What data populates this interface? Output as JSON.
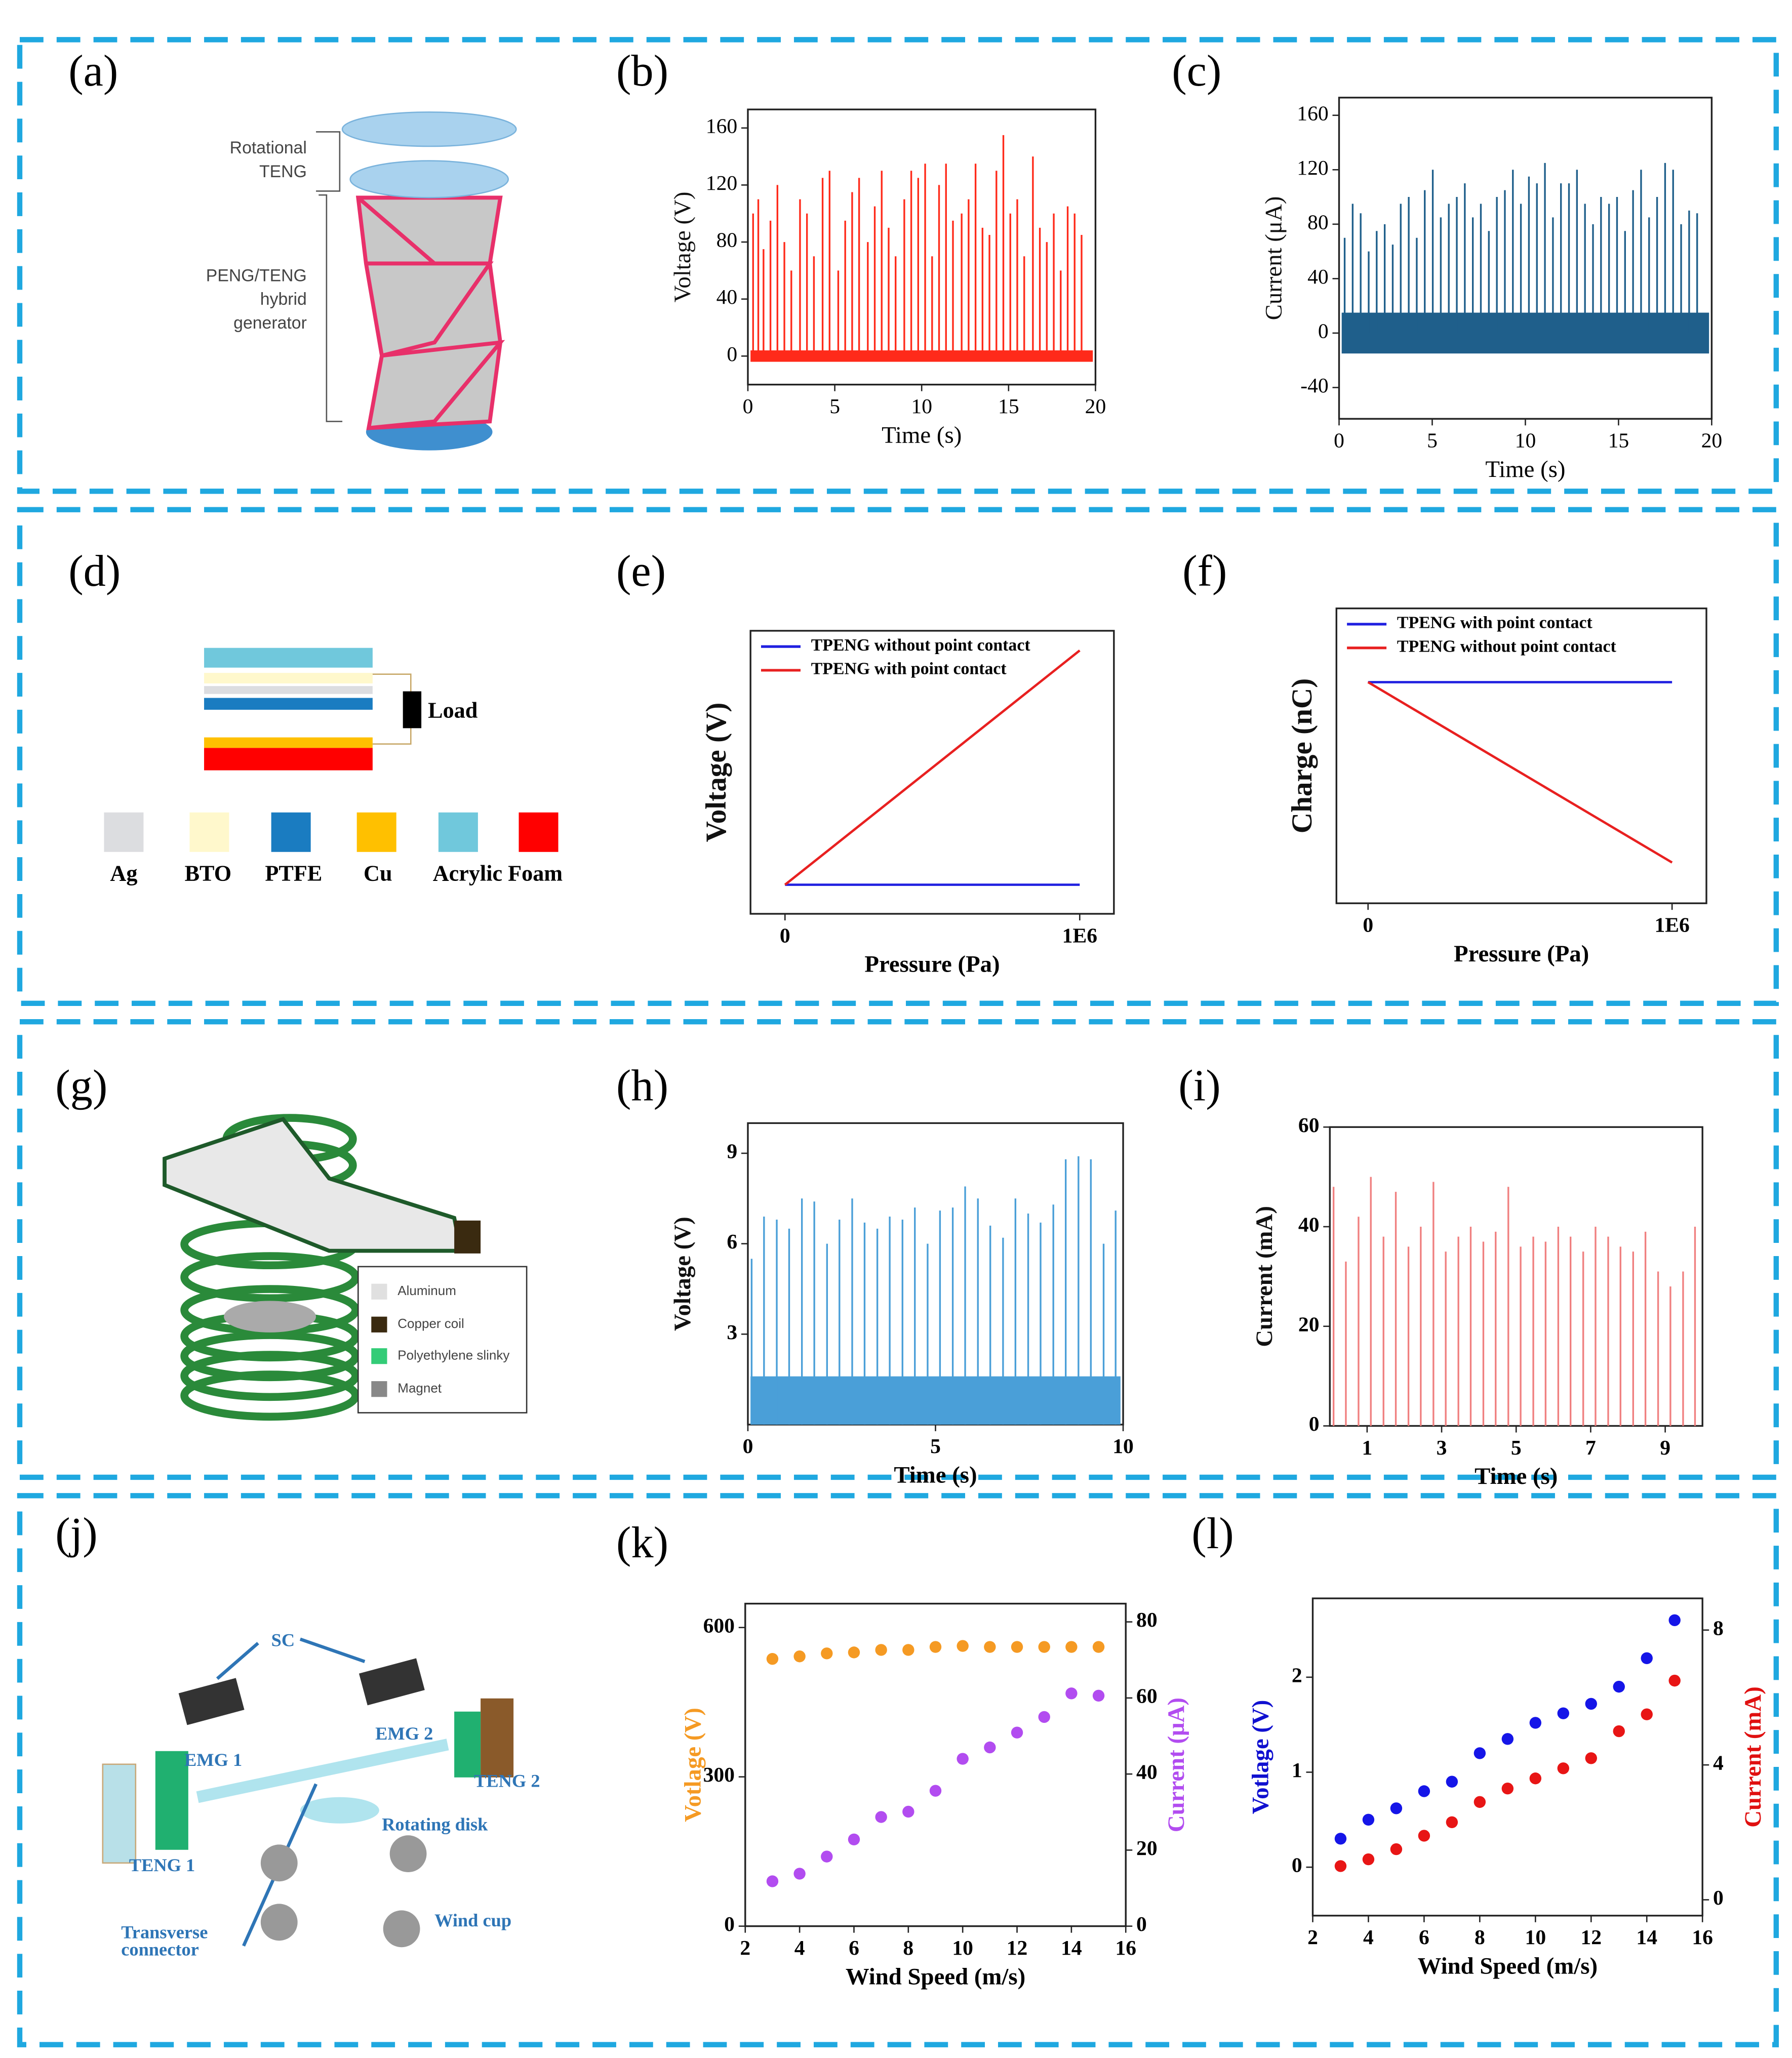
{
  "chart_data": [
    {
      "type": "spikes",
      "panel": "(b)",
      "xlabel": "Time (s)",
      "ylabel": "Voltage (V)",
      "color": "#ff2a1a",
      "xlim": [
        0,
        20
      ],
      "xticks": [
        0,
        5,
        10,
        15,
        20
      ],
      "ylim": [
        -20,
        173
      ],
      "yticks": [
        0,
        40,
        80,
        120,
        160
      ],
      "baseline_band": [
        -4,
        4
      ],
      "x": [
        0.3,
        0.6,
        0.9,
        1.3,
        1.7,
        2.1,
        2.5,
        3.0,
        3.4,
        3.8,
        4.3,
        4.7,
        5.2,
        5.6,
        6.0,
        6.4,
        6.9,
        7.3,
        7.7,
        8.1,
        8.5,
        9.0,
        9.4,
        9.8,
        10.2,
        10.6,
        11.0,
        11.4,
        11.8,
        12.3,
        12.7,
        13.1,
        13.5,
        13.9,
        14.3,
        14.7,
        15.1,
        15.5,
        15.9,
        16.4,
        16.8,
        17.2,
        17.6,
        18.0,
        18.4,
        18.8,
        19.2
      ],
      "values": [
        100,
        110,
        75,
        95,
        120,
        80,
        60,
        110,
        100,
        70,
        125,
        130,
        60,
        95,
        115,
        125,
        80,
        105,
        130,
        90,
        70,
        110,
        130,
        125,
        135,
        70,
        120,
        135,
        95,
        100,
        110,
        135,
        90,
        85,
        130,
        155,
        100,
        110,
        70,
        140,
        90,
        80,
        100,
        60,
        105,
        100,
        85
      ]
    },
    {
      "type": "spikes",
      "panel": "(c)",
      "xlabel": "Time (s)",
      "ylabel": "Current (μA)",
      "color": "#1f5f8b",
      "xlim": [
        0,
        20
      ],
      "xticks": [
        0,
        5,
        10,
        15,
        20
      ],
      "ylim": [
        -63,
        173
      ],
      "yticks": [
        -40,
        0,
        40,
        80,
        120,
        160
      ],
      "baseline_band": [
        -15,
        15
      ],
      "x": [
        0.3,
        0.73,
        1.16,
        1.59,
        2.02,
        2.45,
        2.88,
        3.31,
        3.74,
        4.17,
        4.6,
        5.03,
        5.46,
        5.89,
        6.32,
        6.75,
        7.18,
        7.61,
        8.04,
        8.47,
        8.9,
        9.33,
        9.76,
        10.19,
        10.62,
        11.05,
        11.48,
        11.91,
        12.34,
        12.77,
        13.2,
        13.63,
        14.06,
        14.49,
        14.92,
        15.35,
        15.78,
        16.21,
        16.64,
        17.07,
        17.5,
        17.93,
        18.36,
        18.79,
        19.22
      ],
      "values": [
        70,
        95,
        88,
        60,
        75,
        80,
        65,
        95,
        100,
        70,
        105,
        120,
        85,
        95,
        100,
        110,
        85,
        95,
        75,
        100,
        105,
        120,
        95,
        115,
        110,
        125,
        85,
        110,
        110,
        120,
        95,
        80,
        100,
        95,
        100,
        75,
        105,
        120,
        85,
        100,
        125,
        120,
        80,
        90,
        88
      ]
    },
    {
      "type": "line",
      "panel": "(e)",
      "xlabel": "Pressure (Pa)",
      "ylabel": "Voltage (V)",
      "legend": "upper left",
      "xlim": [
        -117000,
        1116000
      ],
      "xticks": [
        0,
        {
          "value": 1000000,
          "label": "1E6"
        }
      ],
      "ylim": [
        -0.124,
        1.084
      ],
      "x": [
        0,
        1000000
      ],
      "series": [
        {
          "name": "TPENG without point contact",
          "color": "#2020e0",
          "values": [
            0,
            0
          ]
        },
        {
          "name": "TPENG with point contact",
          "color": "#e82020",
          "values": [
            0,
            1
          ]
        }
      ]
    },
    {
      "type": "line",
      "panel": "(f)",
      "xlabel": "Pressure (Pa)",
      "ylabel": "Charge (nC)",
      "legend": "upper left",
      "xlim": [
        -104000,
        1113000
      ],
      "xticks": [
        0,
        {
          "value": 1000000,
          "label": "1E6"
        }
      ],
      "ylim": [
        -0.226,
        1.409
      ],
      "x": [
        0,
        1000000
      ],
      "series": [
        {
          "name": "TPENG with point contact",
          "color": "#2020e0",
          "values": [
            1,
            1
          ]
        },
        {
          "name": "TPENG without point contact",
          "color": "#e82020",
          "values": [
            1,
            0
          ]
        }
      ]
    },
    {
      "type": "spikes",
      "panel": "(h)",
      "xlabel": "Time (s)",
      "ylabel": "Voltage (V)",
      "color": "#4a9fd8",
      "xlim": [
        0,
        10
      ],
      "xticks": [
        0,
        5,
        10
      ],
      "ylim": [
        0,
        10
      ],
      "yticks": [
        3,
        6,
        9
      ],
      "baseline_band": [
        0,
        1.6
      ],
      "x": [
        0.1,
        0.43,
        0.77,
        1.1,
        1.44,
        1.77,
        2.11,
        2.44,
        2.78,
        3.11,
        3.45,
        3.78,
        4.12,
        4.45,
        4.79,
        5.12,
        5.46,
        5.79,
        6.13,
        6.46,
        6.8,
        7.13,
        7.47,
        7.8,
        8.14,
        8.47,
        8.81,
        9.14,
        9.48,
        9.8
      ],
      "values": [
        5.5,
        6.9,
        6.8,
        6.5,
        7.5,
        7.4,
        6.0,
        6.8,
        7.5,
        6.7,
        6.5,
        6.9,
        6.8,
        7.2,
        6.0,
        7.1,
        7.2,
        7.9,
        7.5,
        6.6,
        6.2,
        7.5,
        7.0,
        6.7,
        7.3,
        8.8,
        8.9,
        8.8,
        6.0,
        7.1
      ]
    },
    {
      "type": "spikes",
      "panel": "(i)",
      "xlabel": "Time (s)",
      "ylabel": "Current (mA)",
      "color": "#f08080",
      "xlim": [
        0,
        10
      ],
      "xticks": [
        1,
        3,
        5,
        7,
        9
      ],
      "ylim": [
        0,
        60
      ],
      "yticks": [
        0,
        20,
        40,
        60
      ],
      "x": [
        0.1,
        0.43,
        0.77,
        1.1,
        1.44,
        1.77,
        2.11,
        2.44,
        2.78,
        3.11,
        3.45,
        3.78,
        4.12,
        4.45,
        4.79,
        5.12,
        5.46,
        5.79,
        6.13,
        6.46,
        6.8,
        7.13,
        7.47,
        7.8,
        8.14,
        8.47,
        8.81,
        9.14,
        9.48,
        9.8
      ],
      "values": [
        48,
        33,
        42,
        50,
        38,
        47,
        36,
        40,
        49,
        35,
        38,
        40,
        37,
        39,
        48,
        36,
        38,
        37,
        40,
        38,
        35,
        40,
        38,
        36,
        35,
        39,
        31,
        28,
        31,
        40
      ]
    },
    {
      "type": "scatter",
      "panel": "(k)",
      "xlabel": "Wind Speed (m/s)",
      "ylabel": "Votlage (V)",
      "y2label": "Current (μA)",
      "ylabel_color": "#f59a23",
      "y2label_color": "#b24cf0",
      "xlim": [
        2,
        16
      ],
      "xticks": [
        2,
        4,
        6,
        8,
        10,
        12,
        14,
        16
      ],
      "ylim": [
        0,
        648
      ],
      "yticks": [
        0,
        300,
        600
      ],
      "y2lim": [
        0,
        84.8
      ],
      "y2ticks": [
        0,
        20,
        40,
        60,
        80
      ],
      "x": [
        3,
        4,
        5,
        6,
        7,
        8,
        9,
        10,
        11,
        12,
        13,
        14,
        15
      ],
      "series": [
        {
          "name": "Voltage",
          "color": "#f59a23",
          "values": [
            537,
            542,
            548,
            550,
            555,
            555,
            561,
            563,
            561,
            561,
            561,
            561,
            561
          ]
        },
        {
          "name": "Current",
          "color": "#b24cf0",
          "axis": "y2",
          "values": [
            11.8,
            13.8,
            18.3,
            22.8,
            28.7,
            30.1,
            35.6,
            44,
            47,
            50.9,
            55,
            61.2,
            60.6
          ]
        }
      ]
    },
    {
      "type": "scatter",
      "panel": "(l)",
      "xlabel": "Wind Speed (m/s)",
      "ylabel": "Votlage (V)",
      "y2label": "Current (mA)",
      "ylabel_color": "#1010d0",
      "y2label_color": "#e01010",
      "xlim": [
        2,
        16
      ],
      "xticks": [
        2,
        4,
        6,
        8,
        10,
        12,
        14,
        16
      ],
      "ylim": [
        -0.51,
        2.83
      ],
      "yticks": [
        0,
        1,
        2
      ],
      "y2lim": [
        -0.47,
        8.94
      ],
      "y2ticks": [
        0,
        4,
        8
      ],
      "x": [
        3,
        4,
        5,
        6,
        7,
        8,
        9,
        10,
        11,
        12,
        13,
        14,
        15
      ],
      "series": [
        {
          "name": "Voltage",
          "color": "#1515e8",
          "values": [
            0.3,
            0.5,
            0.62,
            0.8,
            0.9,
            1.2,
            1.35,
            1.52,
            1.62,
            1.72,
            1.9,
            2.2,
            2.6
          ]
        },
        {
          "name": "Current",
          "color": "#e81515",
          "axis": "y2",
          "values": [
            1.0,
            1.2,
            1.5,
            1.9,
            2.3,
            2.9,
            3.3,
            3.6,
            3.9,
            4.2,
            5.0,
            5.5,
            6.5
          ]
        }
      ]
    }
  ],
  "diagrams": [
    {
      "panel": "(a)",
      "labels": [
        "Rotational",
        "TENG",
        "PENG/TENG",
        "hybrid",
        "generator"
      ]
    },
    {
      "panel": "(d)",
      "labels": [
        "Load",
        "Ag",
        "BTO",
        "PTFE",
        "Cu",
        "Acrylic Foam"
      ]
    },
    {
      "panel": "(g)",
      "labels": [
        "Aluminum",
        "Copper coil",
        "Polyethylene slinky",
        "Magnet"
      ]
    },
    {
      "panel": "(j)",
      "labels": [
        "SC",
        "EMG 1",
        "EMG 2",
        "TENG 1",
        "TENG 2",
        "Rotating disk",
        "Transverse",
        "connector",
        "Wind cup"
      ]
    }
  ]
}
